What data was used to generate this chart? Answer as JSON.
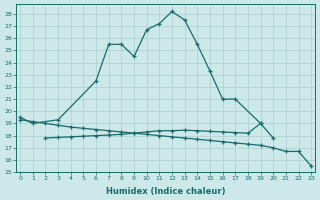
{
  "xlabel": "Humidex (Indice chaleur)",
  "background_color": "#cce8e8",
  "grid_color": "#aacfcf",
  "line_color": "#1a6b6b",
  "x_all": [
    0,
    1,
    2,
    3,
    4,
    5,
    6,
    7,
    8,
    9,
    10,
    11,
    12,
    13,
    14,
    15,
    16,
    17,
    18,
    19,
    20,
    21,
    22,
    23
  ],
  "line_peak_x": [
    0,
    1,
    3,
    6,
    7,
    8,
    9,
    10,
    11,
    12,
    13,
    14,
    15,
    16,
    17,
    19
  ],
  "line_peak_y": [
    19.5,
    19.0,
    19.3,
    22.5,
    25.5,
    25.5,
    24.5,
    26.7,
    27.2,
    28.2,
    27.5,
    25.5,
    23.3,
    21.0,
    21.0,
    19.0
  ],
  "line_dec_x": [
    0,
    1,
    2,
    3,
    4,
    5,
    6,
    7,
    8,
    9,
    10,
    11,
    12,
    13,
    14,
    15,
    16,
    17,
    18,
    19,
    20,
    21,
    22,
    23
  ],
  "line_dec_y": [
    19.3,
    19.15,
    19.0,
    18.85,
    18.7,
    18.6,
    18.5,
    18.4,
    18.3,
    18.2,
    18.1,
    18.0,
    17.9,
    17.8,
    17.7,
    17.6,
    17.5,
    17.4,
    17.3,
    17.2,
    17.0,
    16.7,
    16.7,
    15.5
  ],
  "line_inc_x": [
    2,
    3,
    4,
    5,
    6,
    7,
    8,
    9,
    10,
    11,
    12,
    13,
    14,
    15,
    16,
    17,
    18,
    19,
    20
  ],
  "line_inc_y": [
    17.8,
    17.85,
    17.9,
    17.95,
    18.0,
    18.05,
    18.1,
    18.2,
    18.3,
    18.4,
    18.4,
    18.45,
    18.4,
    18.35,
    18.3,
    18.25,
    18.2,
    19.0,
    17.8
  ],
  "ylim": [
    15,
    28.8
  ],
  "yticks": [
    15,
    16,
    17,
    18,
    19,
    20,
    21,
    22,
    23,
    24,
    25,
    26,
    27,
    28
  ],
  "xlim": [
    -0.3,
    23.3
  ]
}
